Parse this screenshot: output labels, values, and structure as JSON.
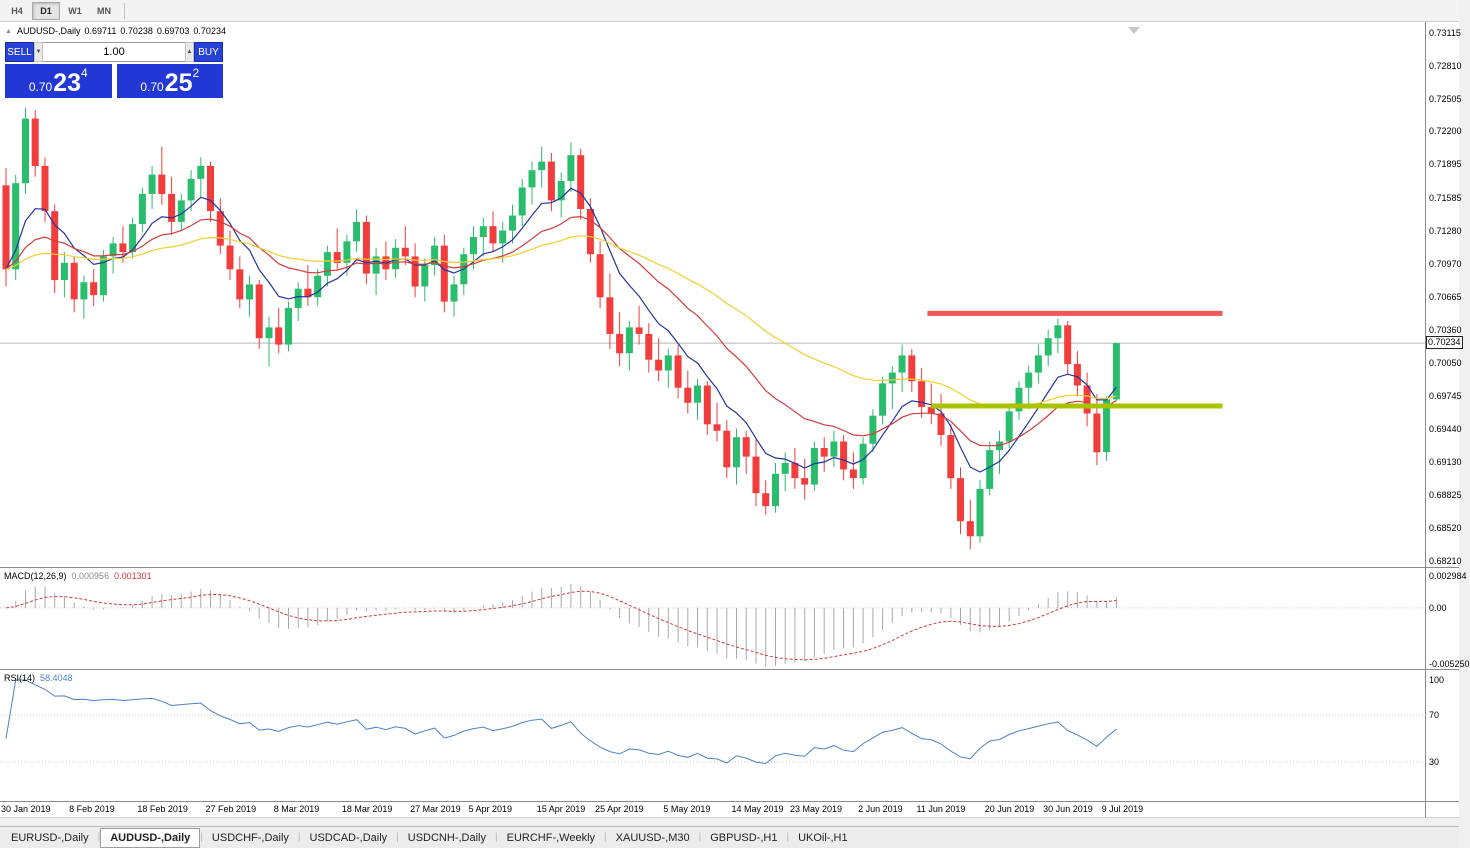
{
  "toolbar": {
    "timeframes": [
      {
        "label": "H4",
        "active": false
      },
      {
        "label": "D1",
        "active": true
      },
      {
        "label": "W1",
        "active": false
      },
      {
        "label": "MN",
        "active": false
      }
    ]
  },
  "header": {
    "symbol": "AUDUSD-,Daily",
    "open": "0.69711",
    "high": "0.70238",
    "low": "0.69703",
    "close": "0.70234"
  },
  "trade_panel": {
    "sell_label": "SELL",
    "buy_label": "BUY",
    "volume": "1.00",
    "sell_price": {
      "prefix": "0.70",
      "big": "23",
      "sup": "4"
    },
    "buy_price": {
      "prefix": "0.70",
      "big": "25",
      "sup": "2"
    }
  },
  "indicators": {
    "macd": {
      "label": "MACD(12,26,9)",
      "main_value": "0.000956",
      "signal_value": "0.001301",
      "axis": [
        "0.002984",
        "0.00",
        "-0.005250"
      ]
    },
    "rsi": {
      "label": "RSI(14)",
      "value": "58.4048",
      "axis": [
        "100",
        "70",
        "30"
      ]
    }
  },
  "tabs": [
    {
      "label": "EURUSD-,Daily",
      "active": false
    },
    {
      "label": "AUDUSD-,Daily",
      "active": true
    },
    {
      "label": "USDCHF-,Daily",
      "active": false
    },
    {
      "label": "USDCAD-,Daily",
      "active": false
    },
    {
      "label": "USDCNH-,Daily",
      "active": false
    },
    {
      "label": "EURCHF-,Weekly",
      "active": false
    },
    {
      "label": "XAUUSD-,M30",
      "active": false
    },
    {
      "label": "GBPUSD-,H1",
      "active": false
    },
    {
      "label": "UKOil-,H1",
      "active": false
    }
  ],
  "colors": {
    "bull": "#2bbd6e",
    "bear": "#f23d3d",
    "ma_fast": "#23339c",
    "ma_mid": "#d43a3a",
    "ma_slow": "#f2cd2e",
    "resistance": "#f25757",
    "support": "#a8c400",
    "macd_hist": "#a8a8a8",
    "macd_signal": "#d43a3a",
    "rsi_line": "#4d82c4",
    "bid_line": "#b8b8b8"
  },
  "chart_data": {
    "type": "candlestick",
    "title": "AUDUSD-,Daily",
    "y_range": [
      0.6821,
      0.73115
    ],
    "y_ticks": [
      "0.73115",
      "0.72810",
      "0.72505",
      "0.72200",
      "0.71895",
      "0.71585",
      "0.71280",
      "0.70970",
      "0.70665",
      "0.70360",
      "0.70050",
      "0.69745",
      "0.69440",
      "0.69130",
      "0.68825",
      "0.68520",
      "0.68210"
    ],
    "bid": "0.70234",
    "ohlc": [
      [
        0.717,
        0.7186,
        0.7076,
        0.7092
      ],
      [
        0.7092,
        0.718,
        0.7082,
        0.7172
      ],
      [
        0.7172,
        0.7242,
        0.7162,
        0.7232
      ],
      [
        0.7232,
        0.724,
        0.7178,
        0.7188
      ],
      [
        0.7188,
        0.7196,
        0.7136,
        0.7146
      ],
      [
        0.7146,
        0.7152,
        0.707,
        0.7082
      ],
      [
        0.7082,
        0.7108,
        0.7066,
        0.7098
      ],
      [
        0.7098,
        0.7104,
        0.7052,
        0.7064
      ],
      [
        0.7064,
        0.7086,
        0.7046,
        0.708
      ],
      [
        0.708,
        0.7092,
        0.7058,
        0.7068
      ],
      [
        0.7068,
        0.711,
        0.7062,
        0.7104
      ],
      [
        0.7104,
        0.7122,
        0.7088,
        0.7116
      ],
      [
        0.7116,
        0.7132,
        0.7098,
        0.7108
      ],
      [
        0.7108,
        0.714,
        0.7102,
        0.7134
      ],
      [
        0.7134,
        0.7168,
        0.7126,
        0.7162
      ],
      [
        0.7162,
        0.7188,
        0.7148,
        0.718
      ],
      [
        0.718,
        0.7206,
        0.7152,
        0.7162
      ],
      [
        0.7162,
        0.7178,
        0.7124,
        0.7136
      ],
      [
        0.7136,
        0.7162,
        0.7128,
        0.7156
      ],
      [
        0.7156,
        0.7184,
        0.7146,
        0.7176
      ],
      [
        0.7176,
        0.7196,
        0.7158,
        0.7188
      ],
      [
        0.7188,
        0.7192,
        0.7136,
        0.7146
      ],
      [
        0.7146,
        0.7158,
        0.7106,
        0.7114
      ],
      [
        0.7114,
        0.7128,
        0.7082,
        0.7092
      ],
      [
        0.7092,
        0.7104,
        0.7056,
        0.7064
      ],
      [
        0.7064,
        0.7086,
        0.7048,
        0.7078
      ],
      [
        0.7078,
        0.7082,
        0.7018,
        0.7028
      ],
      [
        0.7028,
        0.7048,
        0.7002,
        0.7038
      ],
      [
        0.7038,
        0.7056,
        0.7014,
        0.7022
      ],
      [
        0.7022,
        0.7062,
        0.7016,
        0.7056
      ],
      [
        0.7056,
        0.708,
        0.7044,
        0.7074
      ],
      [
        0.7074,
        0.7096,
        0.7058,
        0.7066
      ],
      [
        0.7066,
        0.7092,
        0.7058,
        0.7086
      ],
      [
        0.7086,
        0.7114,
        0.7076,
        0.7108
      ],
      [
        0.7108,
        0.713,
        0.7092,
        0.7098
      ],
      [
        0.7098,
        0.7124,
        0.7086,
        0.7118
      ],
      [
        0.7118,
        0.7148,
        0.7108,
        0.7136
      ],
      [
        0.7136,
        0.7142,
        0.7078,
        0.7088
      ],
      [
        0.7088,
        0.7112,
        0.7068,
        0.7104
      ],
      [
        0.7104,
        0.7118,
        0.7082,
        0.7092
      ],
      [
        0.7092,
        0.712,
        0.7084,
        0.7112
      ],
      [
        0.7112,
        0.7132,
        0.7096,
        0.7104
      ],
      [
        0.7104,
        0.7116,
        0.7066,
        0.7076
      ],
      [
        0.7076,
        0.7102,
        0.7062,
        0.7096
      ],
      [
        0.7096,
        0.7122,
        0.7086,
        0.7114
      ],
      [
        0.7114,
        0.7124,
        0.7052,
        0.7062
      ],
      [
        0.7062,
        0.7086,
        0.7048,
        0.7078
      ],
      [
        0.7078,
        0.7112,
        0.7068,
        0.7106
      ],
      [
        0.7106,
        0.7132,
        0.7092,
        0.7122
      ],
      [
        0.7122,
        0.714,
        0.7104,
        0.7132
      ],
      [
        0.7132,
        0.7146,
        0.7108,
        0.7116
      ],
      [
        0.7116,
        0.7136,
        0.7098,
        0.7128
      ],
      [
        0.7128,
        0.7152,
        0.7116,
        0.7142
      ],
      [
        0.7142,
        0.7176,
        0.7132,
        0.7168
      ],
      [
        0.7168,
        0.7192,
        0.7152,
        0.7184
      ],
      [
        0.7184,
        0.7206,
        0.7168,
        0.7192
      ],
      [
        0.7192,
        0.72,
        0.7146,
        0.7156
      ],
      [
        0.7156,
        0.7182,
        0.714,
        0.7174
      ],
      [
        0.7174,
        0.721,
        0.7164,
        0.7198
      ],
      [
        0.7198,
        0.7204,
        0.7138,
        0.7148
      ],
      [
        0.7148,
        0.7158,
        0.7098,
        0.7106
      ],
      [
        0.7106,
        0.7118,
        0.7056,
        0.7066
      ],
      [
        0.7066,
        0.7088,
        0.7018,
        0.7032
      ],
      [
        0.7032,
        0.7052,
        0.7002,
        0.7014
      ],
      [
        0.7014,
        0.7044,
        0.6998,
        0.7038
      ],
      [
        0.7038,
        0.7058,
        0.7022,
        0.7032
      ],
      [
        0.7032,
        0.7042,
        0.6996,
        0.7008
      ],
      [
        0.7008,
        0.7028,
        0.6988,
        0.6998
      ],
      [
        0.6998,
        0.7018,
        0.6982,
        0.7012
      ],
      [
        0.7012,
        0.7022,
        0.6972,
        0.6982
      ],
      [
        0.6982,
        0.6998,
        0.6958,
        0.6968
      ],
      [
        0.6968,
        0.699,
        0.6952,
        0.6984
      ],
      [
        0.6984,
        0.6988,
        0.6938,
        0.6948
      ],
      [
        0.6948,
        0.6968,
        0.6932,
        0.6942
      ],
      [
        0.6942,
        0.6952,
        0.6898,
        0.6908
      ],
      [
        0.6908,
        0.6944,
        0.6892,
        0.6936
      ],
      [
        0.6936,
        0.6942,
        0.6902,
        0.6918
      ],
      [
        0.6918,
        0.6934,
        0.6872,
        0.6884
      ],
      [
        0.6884,
        0.6896,
        0.6864,
        0.6872
      ],
      [
        0.6872,
        0.6912,
        0.6866,
        0.6902
      ],
      [
        0.6902,
        0.6922,
        0.6886,
        0.6912
      ],
      [
        0.6912,
        0.6926,
        0.6888,
        0.6898
      ],
      [
        0.6898,
        0.6916,
        0.6878,
        0.6892
      ],
      [
        0.6892,
        0.6932,
        0.6886,
        0.6926
      ],
      [
        0.6926,
        0.6936,
        0.6904,
        0.6918
      ],
      [
        0.6918,
        0.6942,
        0.6908,
        0.6932
      ],
      [
        0.6932,
        0.6938,
        0.6896,
        0.6906
      ],
      [
        0.6906,
        0.6922,
        0.6888,
        0.6898
      ],
      [
        0.6898,
        0.6936,
        0.6892,
        0.693
      ],
      [
        0.693,
        0.6962,
        0.6922,
        0.6956
      ],
      [
        0.6956,
        0.6992,
        0.6948,
        0.6986
      ],
      [
        0.6986,
        0.7002,
        0.6962,
        0.6996
      ],
      [
        0.6996,
        0.7022,
        0.6978,
        0.7012
      ],
      [
        0.7012,
        0.7018,
        0.6978,
        0.6988
      ],
      [
        0.6988,
        0.7,
        0.6954,
        0.6964
      ],
      [
        0.6964,
        0.6986,
        0.6948,
        0.6958
      ],
      [
        0.6958,
        0.6976,
        0.6928,
        0.6938
      ],
      [
        0.6938,
        0.6948,
        0.6888,
        0.6898
      ],
      [
        0.6898,
        0.6908,
        0.6846,
        0.6858
      ],
      [
        0.6858,
        0.6878,
        0.6832,
        0.6844
      ],
      [
        0.6844,
        0.6896,
        0.6838,
        0.6888
      ],
      [
        0.6888,
        0.6932,
        0.6882,
        0.6924
      ],
      [
        0.6924,
        0.6942,
        0.6902,
        0.6932
      ],
      [
        0.6932,
        0.6966,
        0.6926,
        0.696
      ],
      [
        0.696,
        0.6988,
        0.6952,
        0.6982
      ],
      [
        0.6982,
        0.7002,
        0.6962,
        0.6996
      ],
      [
        0.6996,
        0.7022,
        0.6986,
        0.7012
      ],
      [
        0.7012,
        0.7036,
        0.7002,
        0.7028
      ],
      [
        0.7028,
        0.7046,
        0.7014,
        0.704
      ],
      [
        0.704,
        0.7044,
        0.6994,
        0.7004
      ],
      [
        0.7004,
        0.7016,
        0.6974,
        0.6984
      ],
      [
        0.6984,
        0.6996,
        0.6946,
        0.6958
      ],
      [
        0.6958,
        0.6976,
        0.691,
        0.6922
      ],
      [
        0.6922,
        0.6974,
        0.6914,
        0.6971
      ],
      [
        0.69711,
        0.70238,
        0.69703,
        0.70234
      ]
    ],
    "x_ticks": [
      {
        "label": "30 Jan 2019",
        "bar": 0
      },
      {
        "label": "8 Feb 2019",
        "bar": 7
      },
      {
        "label": "18 Feb 2019",
        "bar": 14
      },
      {
        "label": "27 Feb 2019",
        "bar": 21
      },
      {
        "label": "8 Mar 2019",
        "bar": 28
      },
      {
        "label": "18 Mar 2019",
        "bar": 35
      },
      {
        "label": "27 Mar 2019",
        "bar": 42
      },
      {
        "label": "5 Apr 2019",
        "bar": 48
      },
      {
        "label": "15 Apr 2019",
        "bar": 55
      },
      {
        "label": "25 Apr 2019",
        "bar": 61
      },
      {
        "label": "5 May 2019",
        "bar": 68
      },
      {
        "label": "14 May 2019",
        "bar": 75
      },
      {
        "label": "23 May 2019",
        "bar": 81
      },
      {
        "label": "2 Jun 2019",
        "bar": 88
      },
      {
        "label": "11 Jun 2019",
        "bar": 94
      },
      {
        "label": "20 Jun 2019",
        "bar": 101
      },
      {
        "label": "30 Jun 2019",
        "bar": 107
      },
      {
        "label": "9 Jul 2019",
        "bar": 113
      }
    ],
    "overlays": {
      "moving_averages": [
        {
          "period": 8,
          "color_key": "ma_fast"
        },
        {
          "period": 20,
          "color_key": "ma_mid"
        },
        {
          "period": 45,
          "color_key": "ma_slow"
        }
      ],
      "hlines": [
        {
          "name": "resistance",
          "price": 0.7051,
          "from_bar": 94.6,
          "to_bar": 124.9,
          "color_key": "resistance",
          "width": 5
        },
        {
          "name": "support",
          "price": 0.6965,
          "from_bar": 95.0,
          "to_bar": 124.9,
          "color_key": "support",
          "width": 5
        }
      ]
    },
    "macd": {
      "fast": 12,
      "slow": 26,
      "signal": 9,
      "range": [
        -0.00525,
        0.002984
      ]
    },
    "rsi": {
      "period": 14,
      "levels": [
        30,
        70
      ],
      "scale": [
        0,
        100
      ]
    }
  }
}
